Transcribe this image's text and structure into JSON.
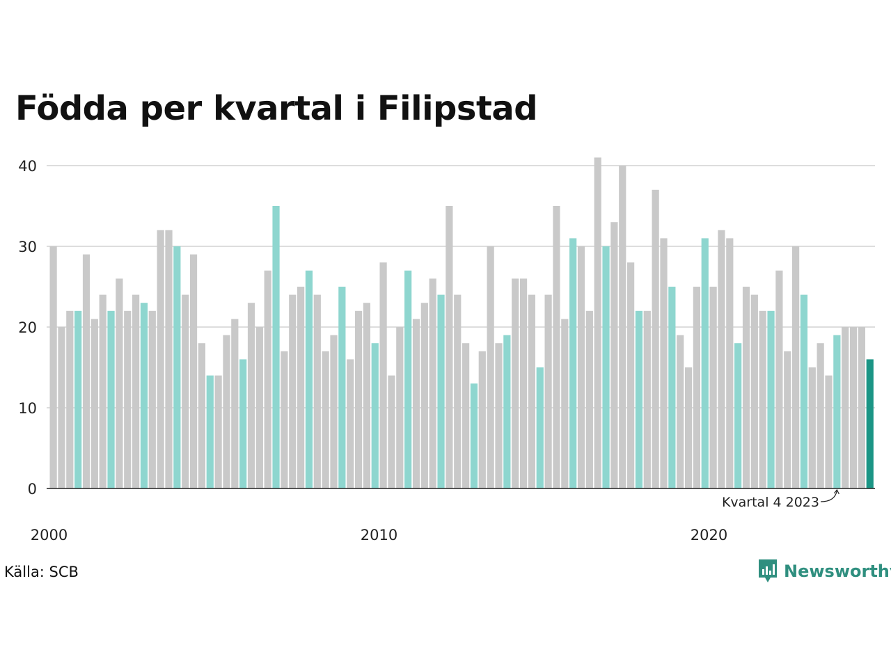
{
  "chart_data": {
    "type": "bar",
    "title": "Födda per kvartal i Filipstad",
    "source": "Källa: SCB",
    "brand": "Newsworthy",
    "ylim": [
      0,
      40
    ],
    "y_ticks": [
      "0",
      "10",
      "20",
      "30",
      "40"
    ],
    "x_tick_labels": [
      {
        "label": "2000",
        "index": 0
      },
      {
        "label": "2010",
        "index": 40
      },
      {
        "label": "2020",
        "index": 80
      }
    ],
    "grid": true,
    "annotation": {
      "text": "Kvartal 4 2023",
      "index": 95
    },
    "highlight_quarter": 4,
    "start_year": 2000,
    "colors": {
      "default": "#c9c9c9",
      "q4": "#8ed6cf",
      "latest": "#1b9585",
      "grid": "#dddddd",
      "axis": "#222222"
    },
    "categories": [
      "2000 Q1",
      "2000 Q2",
      "2000 Q3",
      "2000 Q4",
      "2001 Q1",
      "2001 Q2",
      "2001 Q3",
      "2001 Q4",
      "2002 Q1",
      "2002 Q2",
      "2002 Q3",
      "2002 Q4",
      "2003 Q1",
      "2003 Q2",
      "2003 Q3",
      "2003 Q4",
      "2004 Q1",
      "2004 Q2",
      "2004 Q3",
      "2004 Q4",
      "2005 Q1",
      "2005 Q2",
      "2005 Q3",
      "2005 Q4",
      "2006 Q1",
      "2006 Q2",
      "2006 Q3",
      "2006 Q4",
      "2007 Q1",
      "2007 Q2",
      "2007 Q3",
      "2007 Q4",
      "2008 Q1",
      "2008 Q2",
      "2008 Q3",
      "2008 Q4",
      "2009 Q1",
      "2009 Q2",
      "2009 Q3",
      "2009 Q4",
      "2010 Q1",
      "2010 Q2",
      "2010 Q3",
      "2010 Q4",
      "2011 Q1",
      "2011 Q2",
      "2011 Q3",
      "2011 Q4",
      "2012 Q1",
      "2012 Q2",
      "2012 Q3",
      "2012 Q4",
      "2013 Q1",
      "2013 Q2",
      "2013 Q3",
      "2013 Q4",
      "2014 Q1",
      "2014 Q2",
      "2014 Q3",
      "2014 Q4",
      "2015 Q1",
      "2015 Q2",
      "2015 Q3",
      "2015 Q4",
      "2016 Q1",
      "2016 Q2",
      "2016 Q3",
      "2016 Q4",
      "2017 Q1",
      "2017 Q2",
      "2017 Q3",
      "2017 Q4",
      "2018 Q1",
      "2018 Q2",
      "2018 Q3",
      "2018 Q4",
      "2019 Q1",
      "2019 Q2",
      "2019 Q3",
      "2019 Q4",
      "2020 Q1",
      "2020 Q2",
      "2020 Q3",
      "2020 Q4",
      "2021 Q1",
      "2021 Q2",
      "2021 Q3",
      "2021 Q4",
      "2022 Q1",
      "2022 Q2",
      "2022 Q3",
      "2022 Q4",
      "2023 Q1",
      "2023 Q2",
      "2023 Q3",
      "2023 Q4",
      "2024 Q1",
      "2024 Q2",
      "2024 Q3",
      "2024 Q4"
    ],
    "values": [
      30,
      20,
      22,
      22,
      29,
      21,
      24,
      22,
      26,
      22,
      24,
      23,
      22,
      32,
      32,
      30,
      24,
      29,
      18,
      14,
      14,
      19,
      21,
      16,
      23,
      20,
      27,
      35,
      17,
      24,
      25,
      27,
      24,
      17,
      19,
      25,
      16,
      22,
      23,
      18,
      28,
      14,
      20,
      27,
      21,
      23,
      26,
      24,
      35,
      24,
      18,
      13,
      17,
      30,
      18,
      19,
      26,
      26,
      24,
      15,
      24,
      35,
      21,
      31,
      30,
      22,
      41,
      30,
      33,
      40,
      28,
      22,
      22,
      37,
      31,
      25,
      19,
      15,
      25,
      31,
      25,
      32,
      31,
      18,
      25,
      24,
      22,
      22,
      27,
      17,
      30,
      24,
      15,
      18,
      14,
      19,
      20,
      20,
      20,
      16
    ]
  }
}
